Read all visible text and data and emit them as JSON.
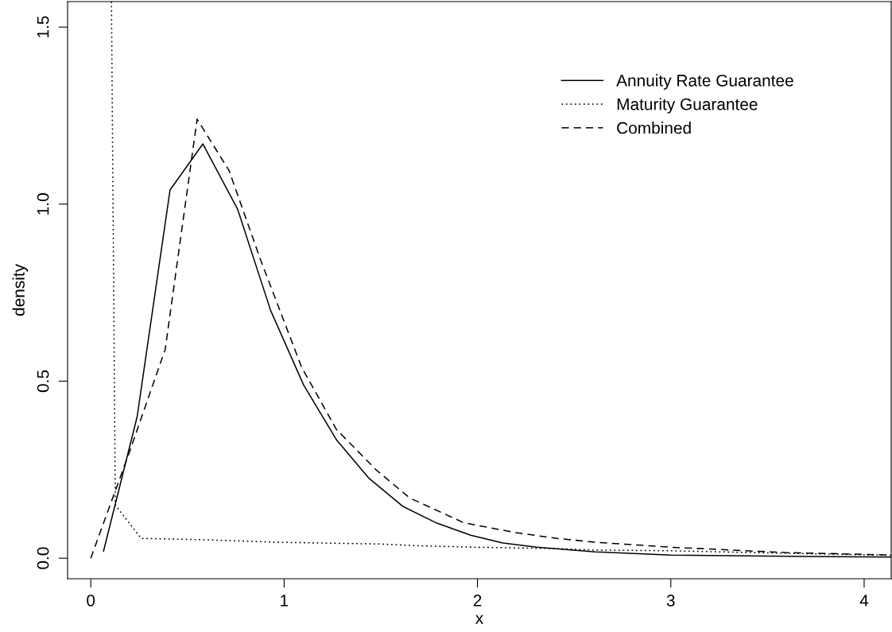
{
  "chart_data": {
    "type": "line",
    "xlabel": "x",
    "ylabel": "density",
    "xlim": [
      -0.12,
      4.14
    ],
    "ylim": [
      -0.058,
      1.572
    ],
    "xticks": [
      0,
      1,
      2,
      3,
      4
    ],
    "yticks": [
      {
        "value": 0,
        "label": "0.0"
      },
      {
        "value": 0.5,
        "label": "0.5"
      },
      {
        "value": 1,
        "label": "1.0"
      },
      {
        "value": 1.5,
        "label": "1.5"
      }
    ],
    "grid": false,
    "legend": "top right",
    "marker": "none",
    "series": [
      {
        "name": "Annuity Rate Guarantee",
        "color": "#000000",
        "line_style": "solid",
        "x": [
          0.066,
          0.24,
          0.41,
          0.58,
          0.76,
          0.93,
          1.1,
          1.27,
          1.44,
          1.615,
          1.79,
          1.965,
          2.13,
          2.305,
          2.61,
          3.0,
          3.5,
          4.14
        ],
        "values": [
          0.02,
          0.4,
          1.04,
          1.17,
          0.985,
          0.7,
          0.49,
          0.335,
          0.225,
          0.146,
          0.099,
          0.065,
          0.043,
          0.031,
          0.018,
          0.009,
          0.006,
          0.003
        ]
      },
      {
        "name": "Maturity Guarantee",
        "color": "#000000",
        "line_style": "dotted",
        "x": [
          0.107,
          0.127,
          0.26,
          0.6,
          0.97,
          1.5,
          1.7,
          2.0,
          2.41,
          2.61,
          3.0,
          3.5,
          4.14
        ],
        "values": [
          1.572,
          0.15,
          0.056,
          0.052,
          0.045,
          0.04,
          0.035,
          0.031,
          0.027,
          0.023,
          0.021,
          0.015,
          0.008
        ]
      },
      {
        "name": "Combined",
        "color": "#000000",
        "line_style": "dashed",
        "x": [
          0.0,
          0.2,
          0.385,
          0.55,
          0.715,
          0.88,
          1.09,
          1.27,
          1.475,
          1.65,
          1.93,
          2.2,
          2.41,
          2.61,
          3.0,
          3.59,
          4.14
        ],
        "values": [
          0.0,
          0.3,
          0.59,
          1.24,
          1.095,
          0.84,
          0.54,
          0.364,
          0.25,
          0.17,
          0.1,
          0.072,
          0.056,
          0.045,
          0.031,
          0.016,
          0.009
        ]
      }
    ]
  }
}
